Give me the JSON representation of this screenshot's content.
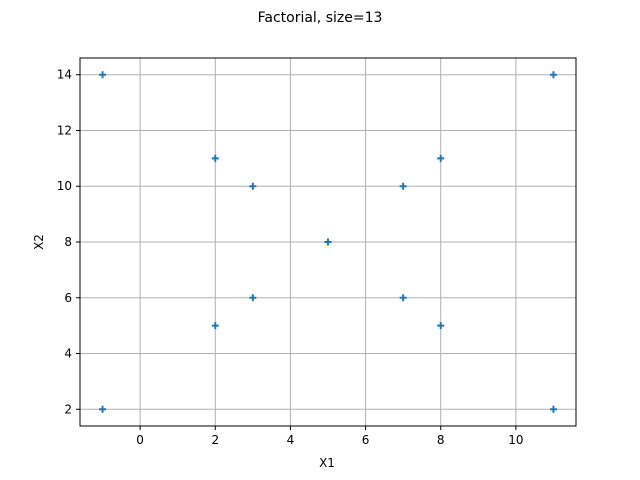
{
  "chart_data": {
    "type": "scatter",
    "title": "Factorial, size=13",
    "xlabel": "X1",
    "ylabel": "X2",
    "xlim": [
      -1.6,
      11.6
    ],
    "ylim": [
      1.4,
      14.6
    ],
    "xticks": [
      0,
      2,
      4,
      6,
      8,
      10
    ],
    "yticks": [
      2,
      4,
      6,
      8,
      10,
      12,
      14
    ],
    "grid": true,
    "marker": "+",
    "color": "#1f77b4",
    "points": [
      {
        "x": -1,
        "y": 14
      },
      {
        "x": 11,
        "y": 14
      },
      {
        "x": 2,
        "y": 11
      },
      {
        "x": 8,
        "y": 11
      },
      {
        "x": 3,
        "y": 10
      },
      {
        "x": 7,
        "y": 10
      },
      {
        "x": 5,
        "y": 8
      },
      {
        "x": 3,
        "y": 6
      },
      {
        "x": 7,
        "y": 6
      },
      {
        "x": 2,
        "y": 5
      },
      {
        "x": 8,
        "y": 5
      },
      {
        "x": -1,
        "y": 2
      },
      {
        "x": 11,
        "y": 2
      }
    ]
  }
}
